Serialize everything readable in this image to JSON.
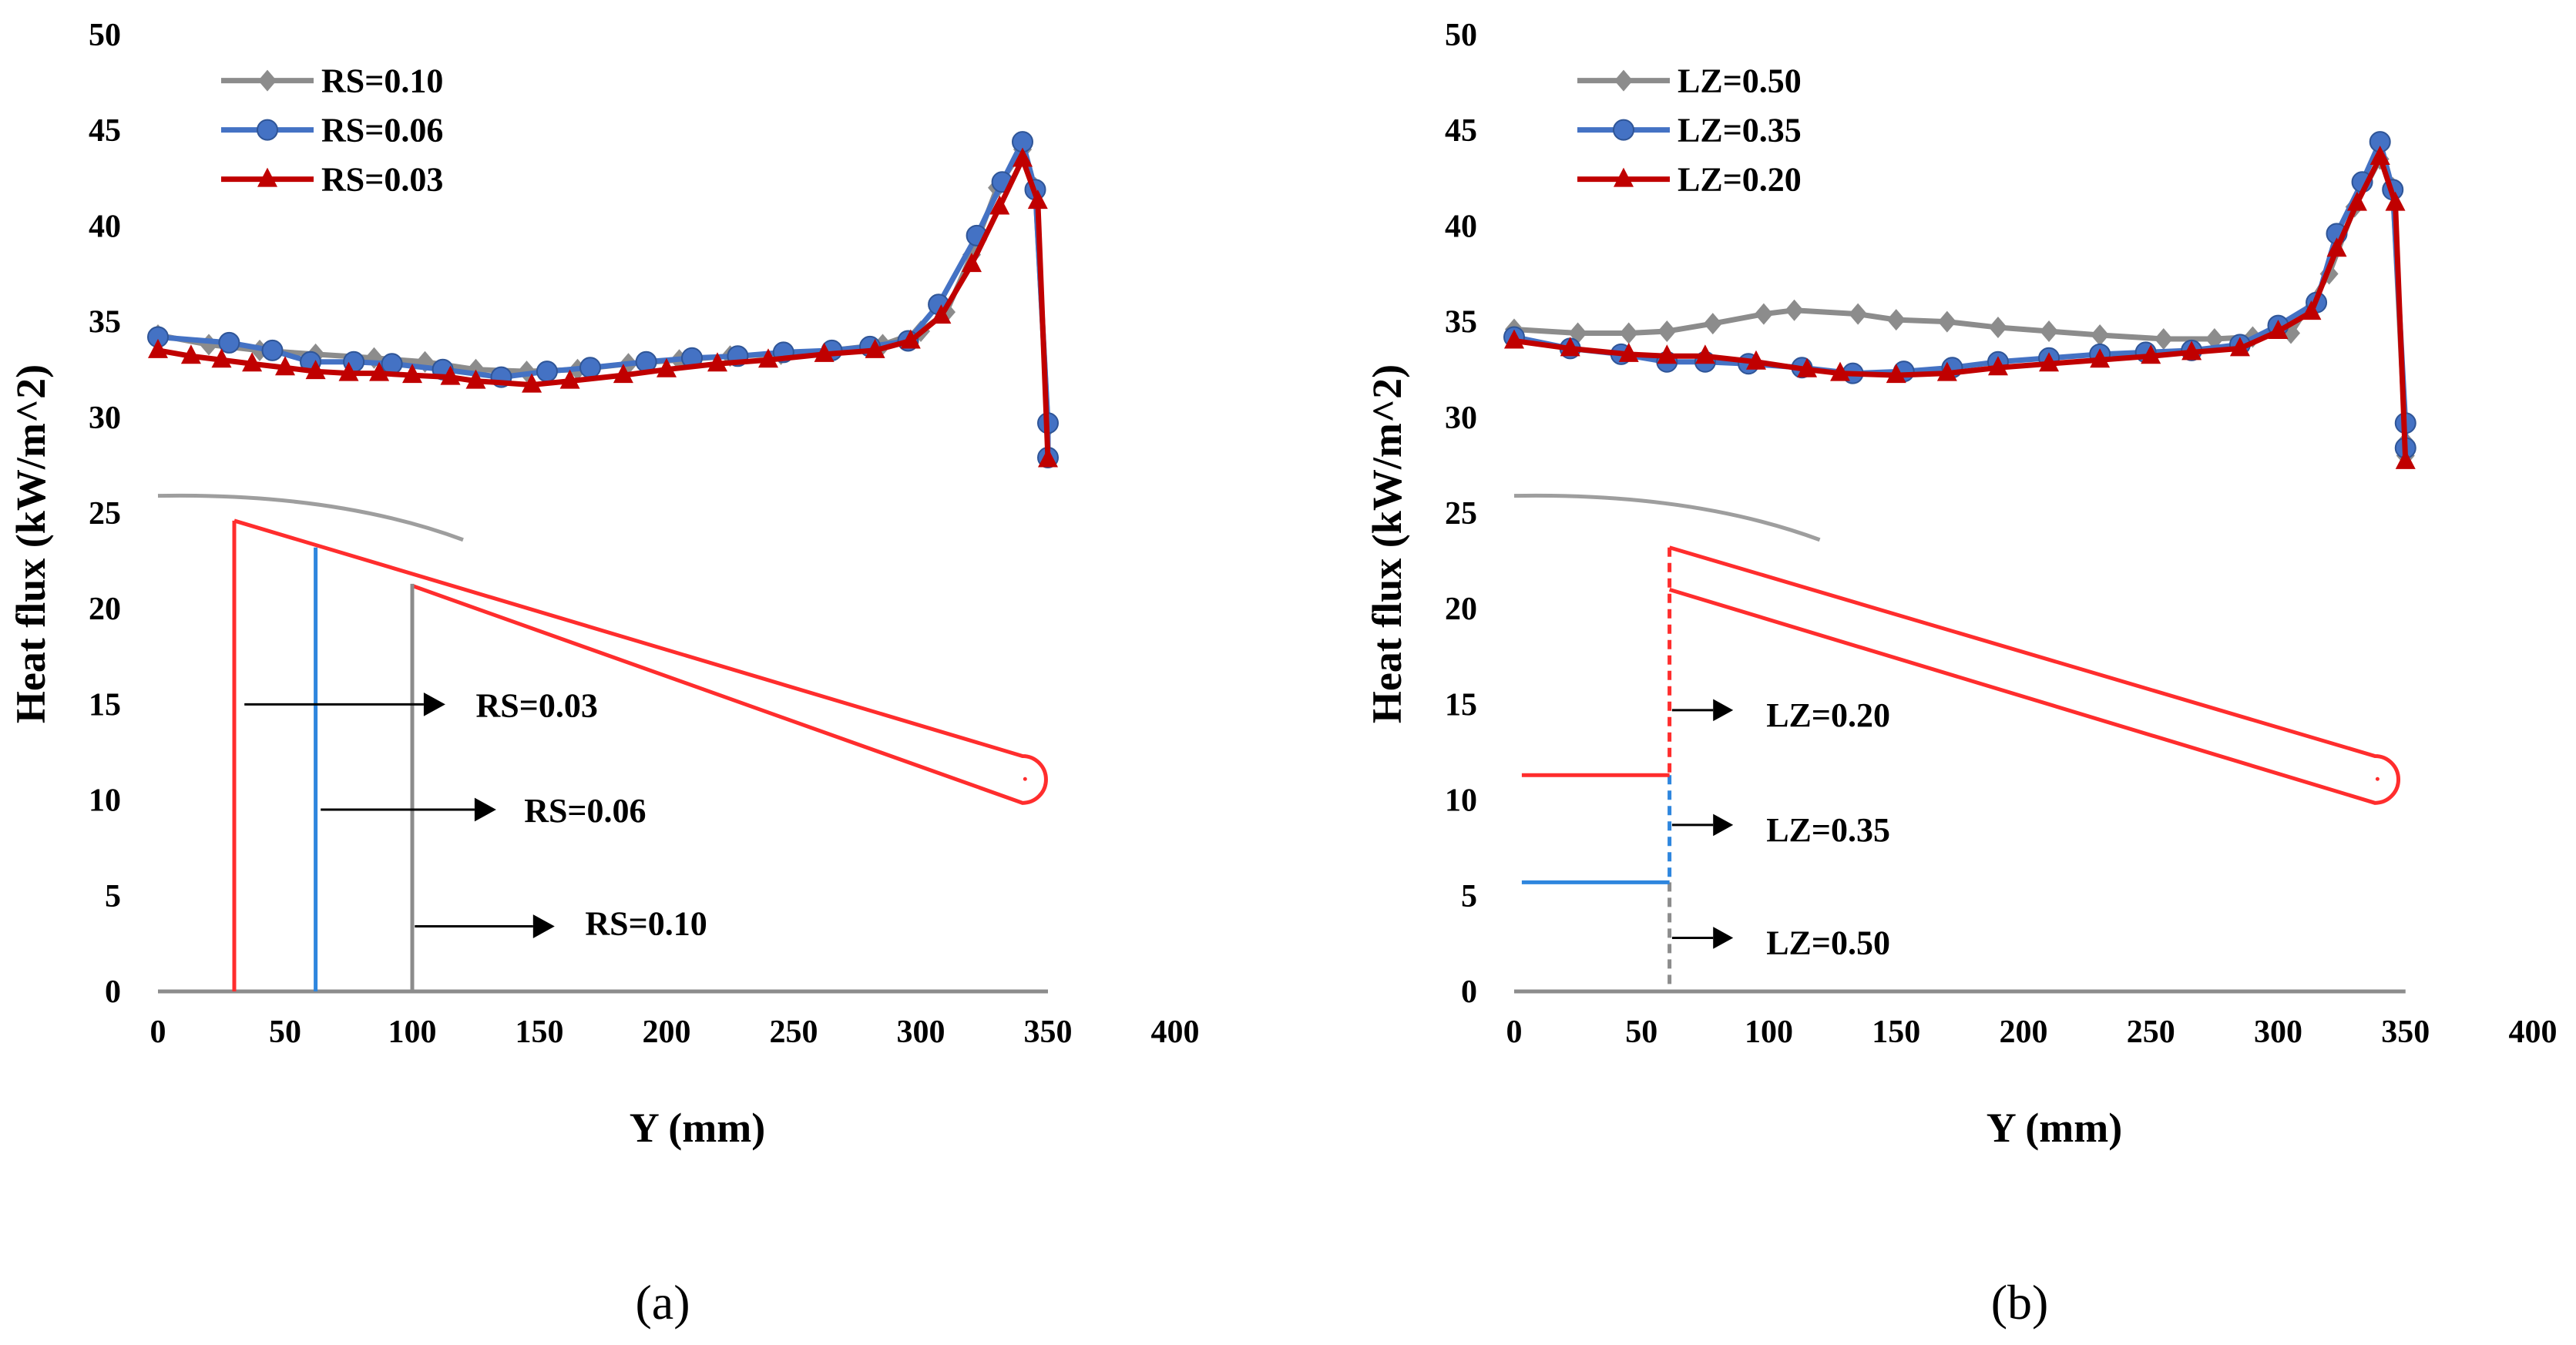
{
  "chart_data": [
    {
      "type": "line",
      "panel_label": "(a)",
      "xlabel": "Y (mm)",
      "ylabel": "Heat flux (kW/m^2)",
      "xlim": [
        0,
        400
      ],
      "ylim": [
        0,
        50
      ],
      "xticks": [
        0,
        50,
        100,
        150,
        200,
        250,
        300,
        350,
        400
      ],
      "yticks": [
        0,
        5,
        10,
        15,
        20,
        25,
        30,
        35,
        40,
        45,
        50
      ],
      "legend_position": "top-left",
      "series": [
        {
          "name": "RS=0.10",
          "color": "#8c8c8c",
          "marker": "diamond",
          "x": [
            0,
            20,
            40,
            62,
            85,
            105,
            125,
            145,
            165,
            185,
            205,
            225,
            245,
            265,
            285,
            300,
            310,
            320,
            330,
            340,
            345,
            350,
            350
          ],
          "y": [
            34.3,
            33.8,
            33.5,
            33.3,
            33.1,
            32.9,
            32.5,
            32.4,
            32.5,
            32.8,
            33.0,
            33.2,
            33.3,
            33.5,
            33.8,
            34.5,
            35.5,
            38.5,
            42.0,
            44.0,
            42.0,
            29.5,
            28.0
          ]
        },
        {
          "name": "RS=0.06",
          "color": "#4472c4",
          "marker": "circle",
          "x": [
            0,
            28,
            45,
            60,
            77,
            92,
            112,
            135,
            153,
            170,
            192,
            210,
            228,
            246,
            265,
            280,
            295,
            307,
            322,
            332,
            340,
            345,
            350,
            350
          ],
          "y": [
            34.2,
            33.9,
            33.5,
            32.9,
            32.9,
            32.8,
            32.5,
            32.1,
            32.4,
            32.6,
            32.9,
            33.1,
            33.2,
            33.4,
            33.5,
            33.7,
            34.0,
            35.9,
            39.5,
            42.3,
            44.4,
            41.9,
            29.7,
            27.9
          ]
        },
        {
          "name": "RS=0.03",
          "color": "#c00000",
          "marker": "triangle",
          "x": [
            0,
            13,
            25,
            37,
            50,
            62,
            75,
            87,
            100,
            115,
            125,
            147,
            162,
            183,
            200,
            220,
            240,
            262,
            282,
            296,
            308,
            320,
            331,
            340,
            346,
            350
          ],
          "y": [
            33.5,
            33.2,
            33.0,
            32.8,
            32.6,
            32.4,
            32.3,
            32.3,
            32.2,
            32.1,
            31.9,
            31.7,
            31.9,
            32.2,
            32.5,
            32.8,
            33.0,
            33.3,
            33.5,
            34.0,
            35.3,
            38.0,
            41.0,
            43.5,
            41.3,
            27.8
          ]
        }
      ],
      "annotations": [
        "RS=0.03",
        "RS=0.06",
        "RS=0.10"
      ]
    },
    {
      "type": "line",
      "panel_label": "(b)",
      "xlabel": "Y (mm)",
      "ylabel": "Heat flux (kW/m^2)",
      "xlim": [
        0,
        400
      ],
      "ylim": [
        0,
        50
      ],
      "xticks": [
        0,
        50,
        100,
        150,
        200,
        250,
        300,
        350,
        400
      ],
      "yticks": [
        0,
        5,
        10,
        15,
        20,
        25,
        30,
        35,
        40,
        45,
        50
      ],
      "legend_position": "top-left",
      "series": [
        {
          "name": "LZ=0.50",
          "color": "#8c8c8c",
          "marker": "diamond",
          "x": [
            0,
            25,
            45,
            60,
            78,
            98,
            110,
            135,
            150,
            170,
            190,
            210,
            230,
            255,
            275,
            290,
            305,
            320,
            330,
            340,
            345,
            350,
            350
          ],
          "y": [
            34.6,
            34.4,
            34.4,
            34.5,
            34.9,
            35.4,
            35.6,
            35.4,
            35.1,
            35.0,
            34.7,
            34.5,
            34.3,
            34.1,
            34.1,
            34.2,
            34.4,
            37.5,
            41.0,
            43.5,
            42.0,
            28.7,
            28.0
          ]
        },
        {
          "name": "LZ=0.35",
          "color": "#4472c4",
          "marker": "circle",
          "x": [
            0,
            22,
            42,
            60,
            75,
            92,
            113,
            133,
            153,
            172,
            190,
            210,
            230,
            248,
            266,
            285,
            300,
            315,
            323,
            333,
            340,
            345,
            350,
            350
          ],
          "y": [
            34.2,
            33.6,
            33.3,
            32.9,
            32.9,
            32.8,
            32.6,
            32.3,
            32.4,
            32.6,
            32.9,
            33.1,
            33.3,
            33.4,
            33.5,
            33.8,
            34.8,
            36.0,
            39.6,
            42.3,
            44.4,
            41.9,
            29.7,
            28.4
          ]
        },
        {
          "name": "LZ=0.20",
          "color": "#c00000",
          "marker": "triangle",
          "x": [
            0,
            22,
            45,
            60,
            75,
            95,
            115,
            128,
            150,
            170,
            190,
            210,
            230,
            250,
            266,
            285,
            300,
            313,
            323,
            331,
            340,
            346,
            350
          ],
          "y": [
            34.0,
            33.6,
            33.3,
            33.2,
            33.2,
            32.9,
            32.5,
            32.3,
            32.2,
            32.3,
            32.6,
            32.8,
            33.0,
            33.2,
            33.4,
            33.6,
            34.5,
            35.5,
            38.8,
            41.2,
            43.6,
            41.2,
            27.7
          ]
        }
      ],
      "annotations": [
        "LZ=0.20",
        "LZ=0.35",
        "LZ=0.50"
      ]
    }
  ]
}
